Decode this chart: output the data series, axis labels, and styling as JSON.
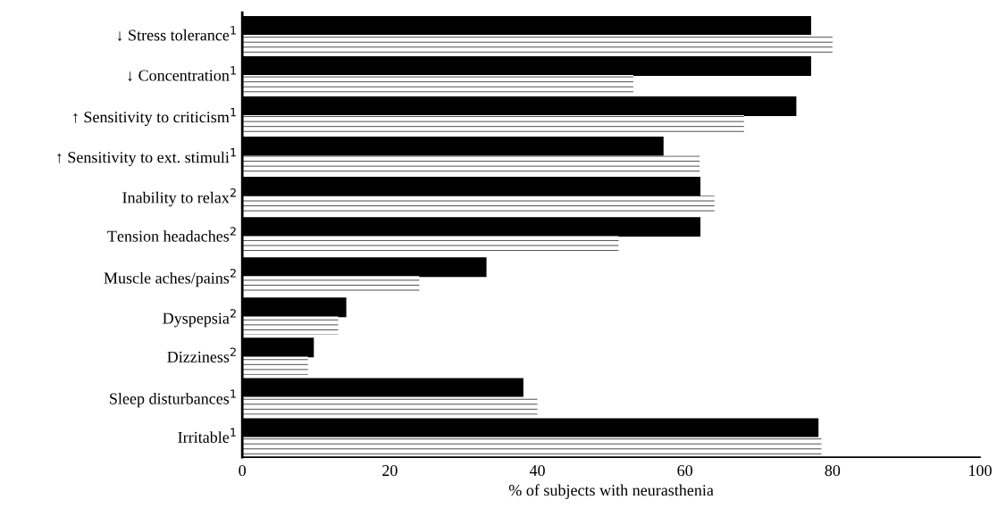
{
  "chart_data": {
    "type": "bar",
    "orientation": "horizontal",
    "xlabel": "% of subjects with neurasthenia",
    "categories": [
      "↓ Stress tolerance$^{1}$",
      "↓ Concentration$^{1}$",
      "↑ Sensitivity to criticism$^{1}$",
      "↑ Sensitivity to ext. stimuli$^{1}$",
      "Inability to relax$^{2}$",
      "Tension headaches$^{2}$",
      "Muscle aches/pains$^{2}$",
      "Dyspepsia$^{2}$",
      "Dizziness$^{2}$",
      "Sleep disturbances$^{1}$",
      "Irritable$^{1}$"
    ],
    "series": [
      {
        "color": "#000000",
        "values": [
          77,
          77,
          75,
          57,
          62,
          62,
          33,
          14,
          9.6,
          38,
          78
        ]
      },
      {
        "color": "#ffffff",
        "values": [
          80,
          53,
          68,
          62,
          64,
          51,
          24,
          13,
          8.9,
          40,
          78.5
        ]
      }
    ],
    "xlim": [
      0,
      100
    ],
    "xticks": [
      0,
      20,
      40,
      60,
      80,
      100
    ],
    "grid": false,
    "legend": false
  }
}
